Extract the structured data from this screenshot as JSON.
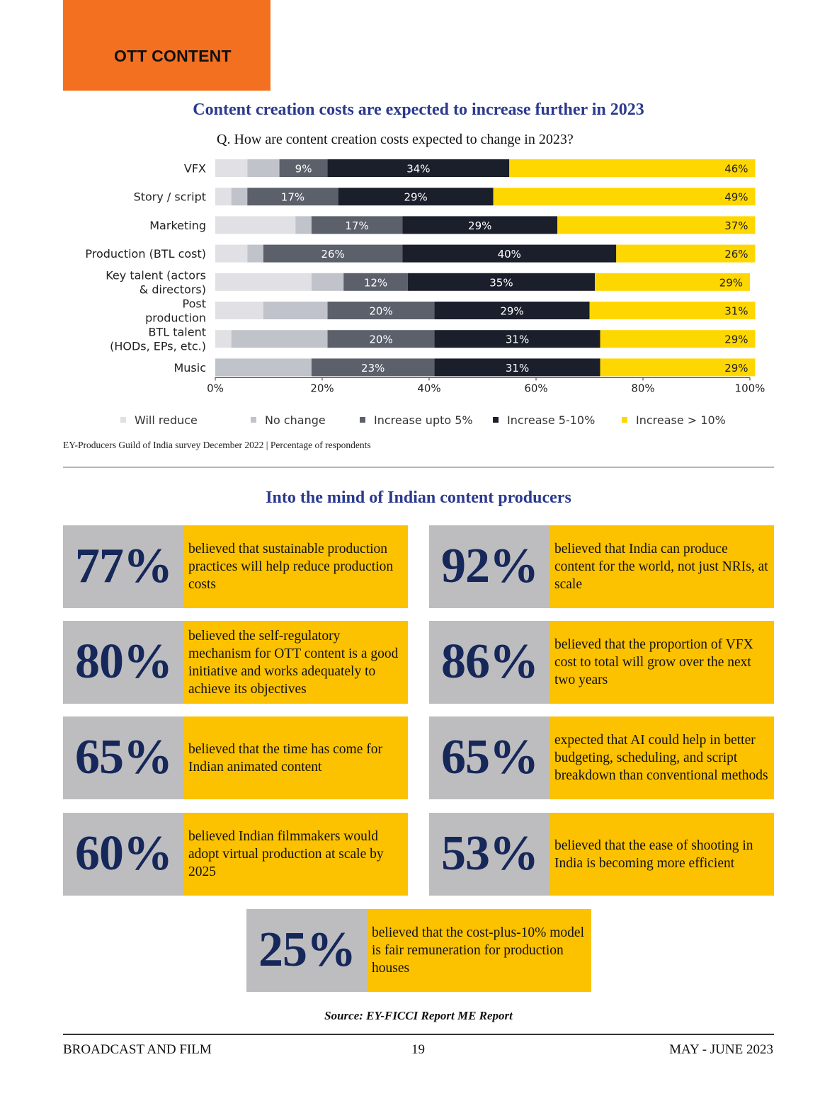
{
  "section_tag": "OTT CONTENT",
  "chart_title": "Content creation costs are expected to increase further in 2023",
  "chart_question": "Q. How are content creation costs expected to change in 2023?",
  "chart_data": {
    "type": "bar",
    "orientation": "horizontal",
    "stacked": true,
    "categories": [
      [
        "VFX"
      ],
      [
        "Story / script"
      ],
      [
        "Marketing"
      ],
      [
        "Production (BTL cost)"
      ],
      [
        "Key talent (actors",
        "& directors)"
      ],
      [
        "Post",
        "production"
      ],
      [
        "BTL talent",
        "(HODs, EPs, etc.)"
      ],
      [
        "Music"
      ]
    ],
    "series": [
      {
        "name": "Will reduce",
        "color": "#e1e1e5",
        "values": [
          6,
          3,
          15,
          6,
          18,
          9,
          3,
          0
        ]
      },
      {
        "name": "No change",
        "color": "#c0c3ca",
        "values": [
          6,
          3,
          3,
          3,
          6,
          12,
          18,
          18
        ]
      },
      {
        "name": "Increase upto 5%",
        "color": "#5b606b",
        "values": [
          9,
          17,
          17,
          26,
          12,
          20,
          20,
          23
        ]
      },
      {
        "name": "Increase 5-10%",
        "color": "#1b1f2c",
        "values": [
          34,
          29,
          29,
          40,
          35,
          29,
          31,
          31
        ]
      },
      {
        "name": "Increase > 10%",
        "color": "#ffd700",
        "values": [
          46,
          49,
          37,
          26,
          29,
          31,
          29,
          29
        ]
      }
    ],
    "labeled_series": [
      2,
      3,
      4
    ],
    "xlim": [
      0,
      100
    ],
    "xticks": [
      "0%",
      "20%",
      "40%",
      "60%",
      "80%",
      "100%"
    ],
    "legend_position": "bottom",
    "grid": false
  },
  "chart_source": "EY-Producers Guild of India survey December 2022 | Percentage of respondents",
  "sub_title": "Into the mind of Indian content producers",
  "stats": [
    {
      "pct": "77%",
      "text": "believed that sustainable production practices will help reduce production costs"
    },
    {
      "pct": "92%",
      "text": "believed that India can produce content for the world, not just NRIs, at scale"
    },
    {
      "pct": "80%",
      "text": "believed the self-regulatory mechanism for OTT content is a good initiative and works adequately to achieve its objectives"
    },
    {
      "pct": "86%",
      "text": "believed that the proportion of VFX cost to total will grow over the next two years"
    },
    {
      "pct": "65%",
      "text": "believed that the time has come for Indian animated content"
    },
    {
      "pct": "65%",
      "text": "expected that AI could help in better budgeting, scheduling, and script breakdown than conventional methods"
    },
    {
      "pct": "60%",
      "text": "believed Indian filmmakers would adopt virtual production at scale by 2025"
    },
    {
      "pct": "53%",
      "text": "believed that the ease of shooting in India is becoming more efficient"
    },
    {
      "pct": "25%",
      "text": "believed that the cost-plus-10% model is fair remuneration for production houses"
    }
  ],
  "source_note": "Source: EY-FICCI Report ME Report",
  "footer": {
    "left": "BROADCAST AND FILM",
    "page": "19",
    "right": "MAY - JUNE 2023"
  }
}
